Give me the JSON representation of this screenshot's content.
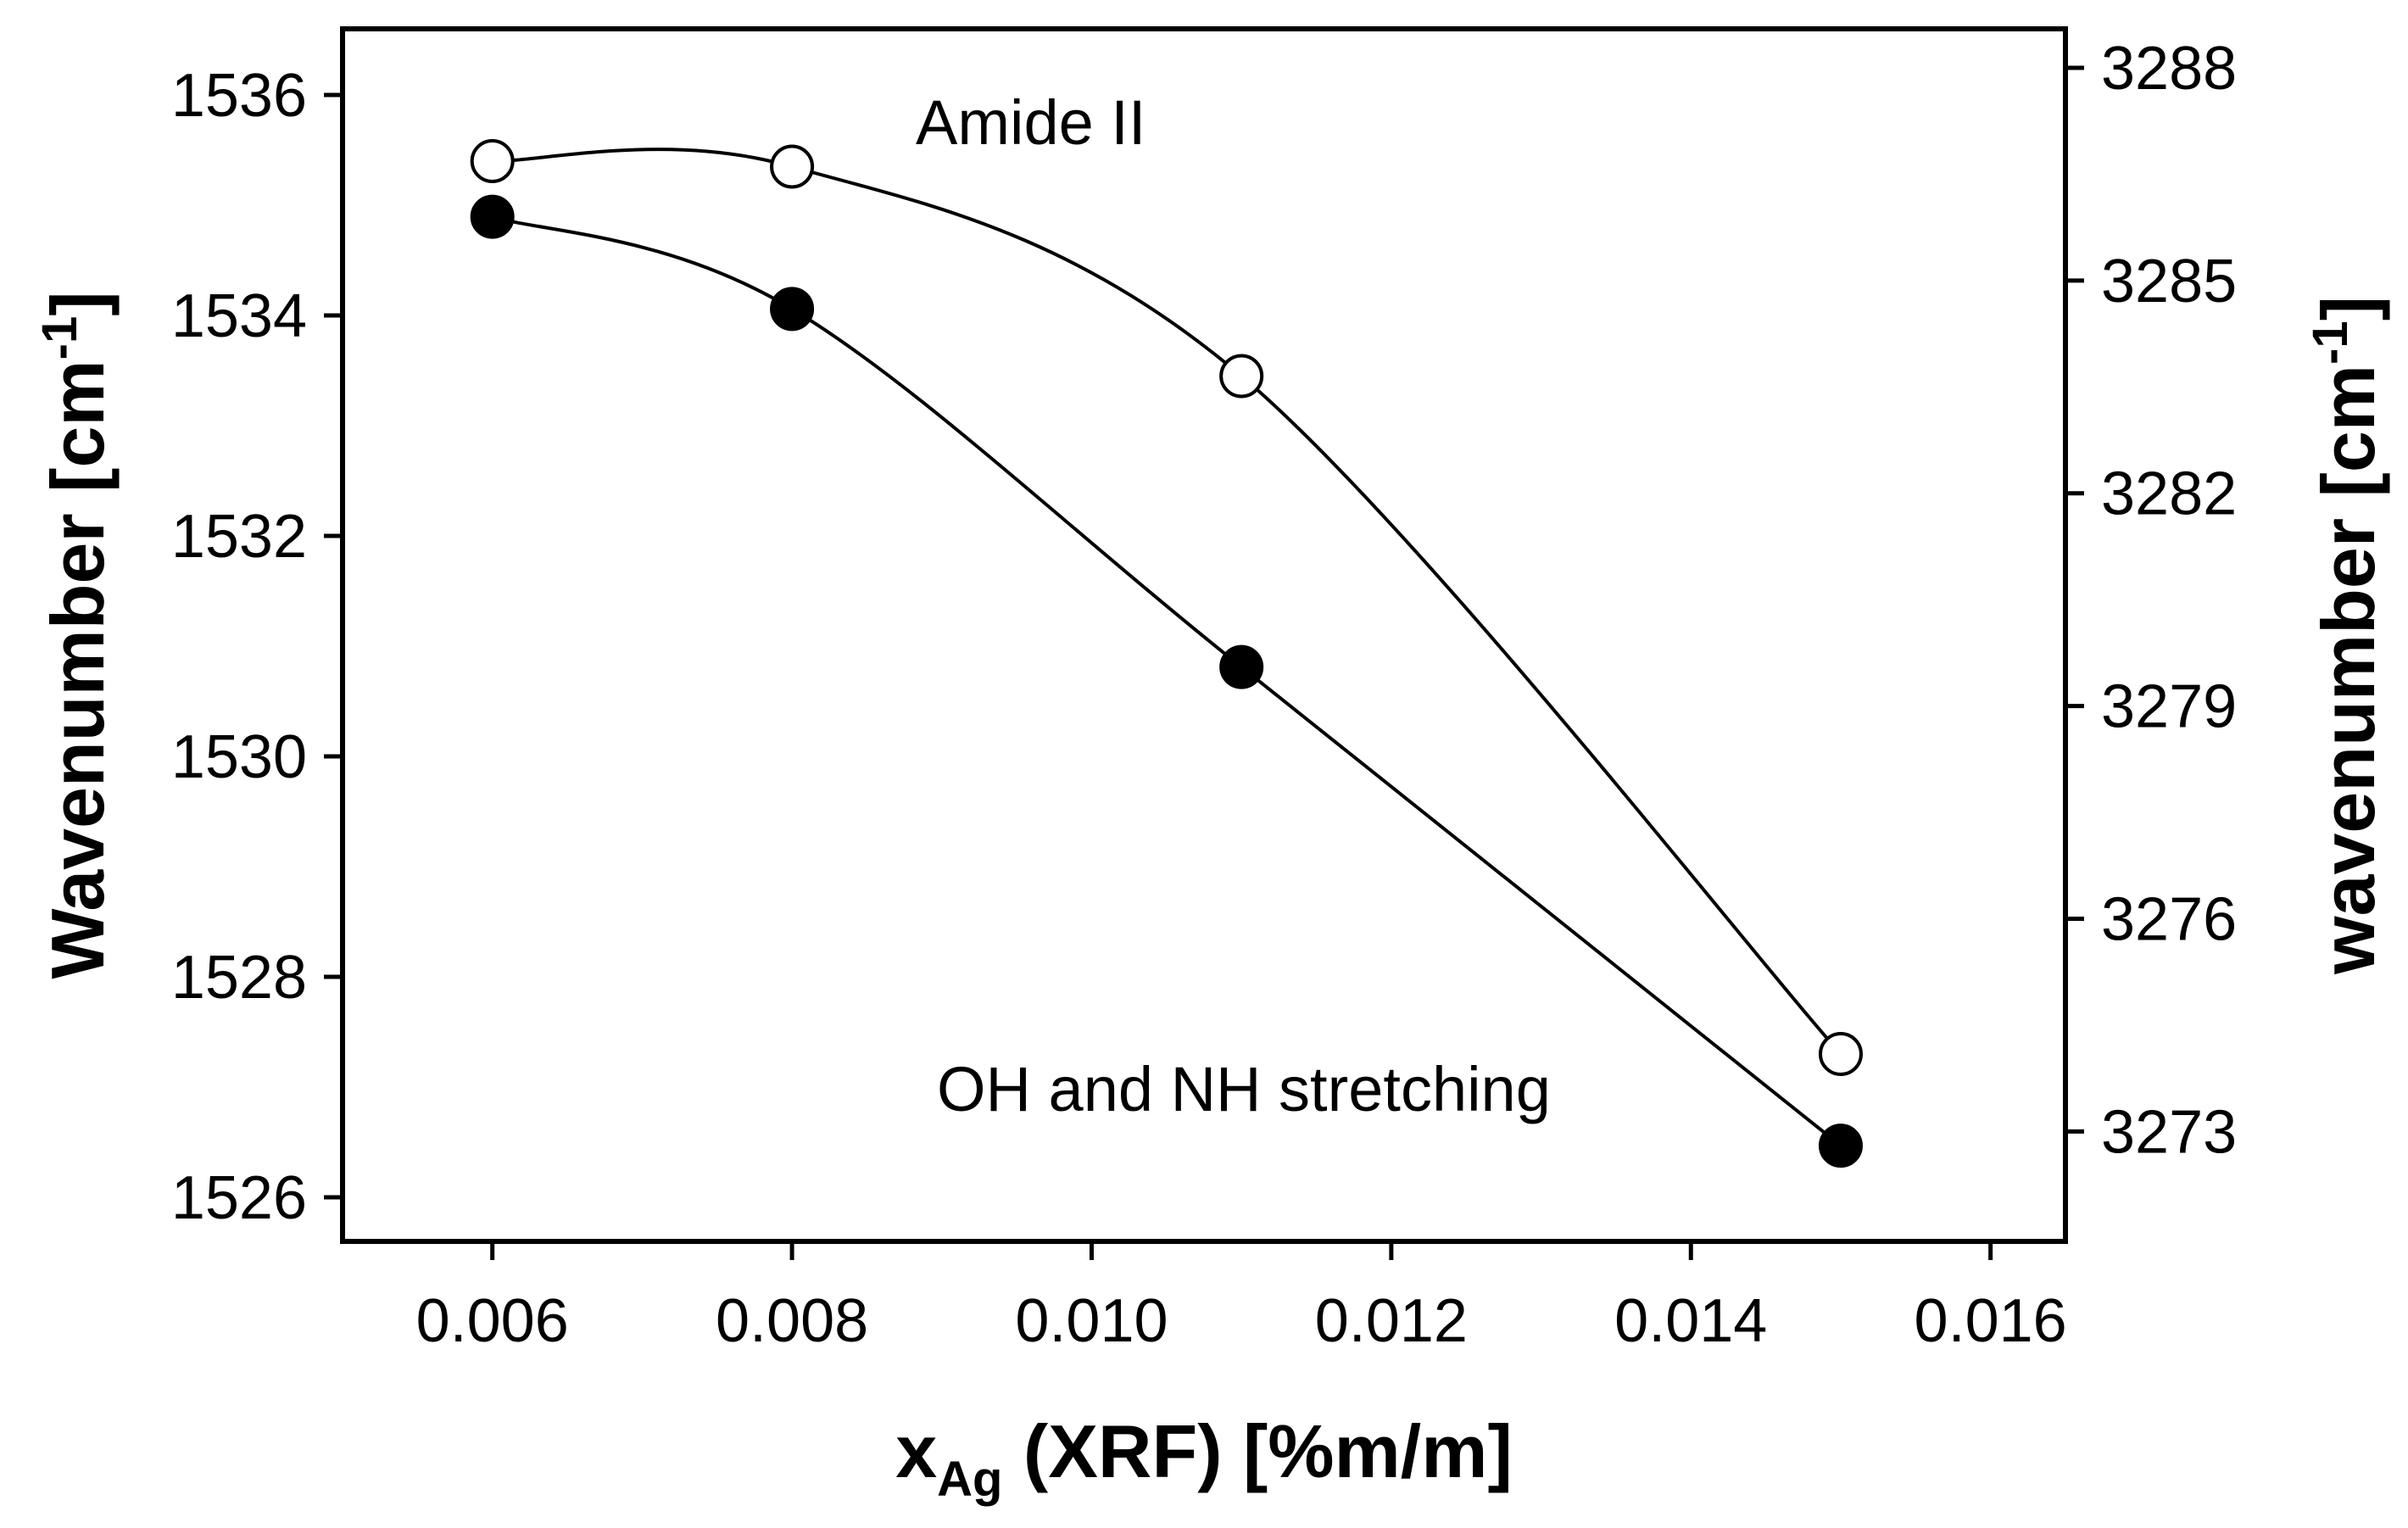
{
  "chart_data": {
    "type": "scatter",
    "title": "",
    "xlabel": {
      "main": "x",
      "subscript": "Ag",
      "rest": " (XRF) [%m/m]"
    },
    "ylabel_left": {
      "main": "Wavenumber [cm",
      "superscript": "-1",
      "close": "]"
    },
    "ylabel_right": {
      "main": "wavenumber [cm",
      "superscript": "-1",
      "close": "]"
    },
    "xlim": [
      0.005,
      0.0165
    ],
    "ylim_left": [
      1525.6,
      1536.6
    ],
    "ylim_right": [
      3271.45,
      3288.55
    ],
    "x_ticks": [
      0.006,
      0.008,
      0.01,
      0.012,
      0.014,
      0.016
    ],
    "x_tick_labels": [
      "0.006",
      "0.008",
      "0.010",
      "0.012",
      "0.014",
      "0.016"
    ],
    "y_left_ticks": [
      1526,
      1528,
      1530,
      1532,
      1534,
      1536
    ],
    "y_left_tick_labels": [
      "1526",
      "1528",
      "1530",
      "1532",
      "1534",
      "1536"
    ],
    "y_right_ticks": [
      3273,
      3276,
      3279,
      3282,
      3285,
      3288
    ],
    "y_right_tick_labels": [
      "3273",
      "3276",
      "3279",
      "3282",
      "3285",
      "3288"
    ],
    "series": [
      {
        "name": "Amide II",
        "axis": "left",
        "marker": "open-circle",
        "x": [
          0.006,
          0.008,
          0.011,
          0.015
        ],
        "y": [
          1535.4,
          1535.35,
          1533.45,
          1527.3
        ]
      },
      {
        "name": "OH and NH stretching",
        "axis": "right",
        "marker": "filled-circle",
        "x": [
          0.006,
          0.008,
          0.011,
          0.015
        ],
        "y": [
          3285.9,
          3284.6,
          3279.55,
          3272.8
        ]
      }
    ],
    "annotations": [
      {
        "text": "Amide II",
        "series": "Amide II"
      },
      {
        "text": "OH and NH stretching",
        "series": "OH and NH stretching"
      }
    ],
    "grid": false,
    "legend": "none"
  }
}
